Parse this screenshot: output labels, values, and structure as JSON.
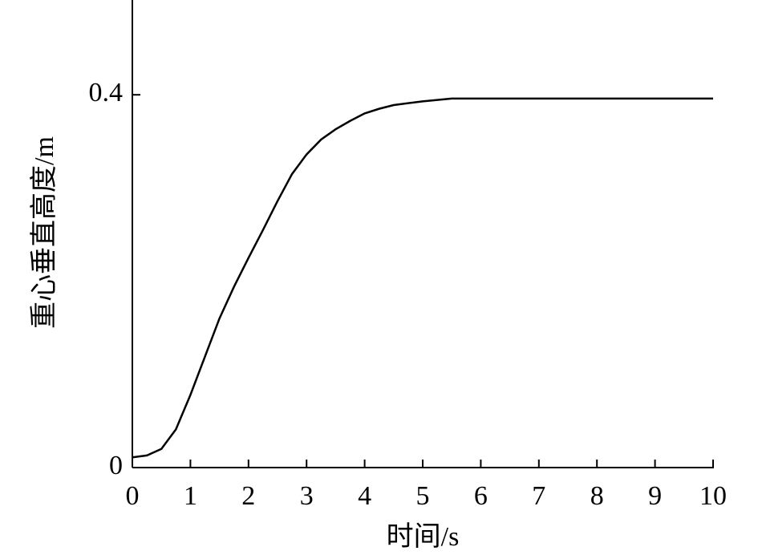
{
  "chart_data": {
    "type": "line",
    "x_label": "时间/s",
    "y_label": "重心垂直高度/m",
    "x": [
      0,
      0.25,
      0.5,
      0.75,
      1,
      1.25,
      1.5,
      1.75,
      2,
      2.25,
      2.5,
      2.75,
      3,
      3.25,
      3.5,
      3.75,
      4,
      4.25,
      4.5,
      5,
      5.5,
      6,
      7,
      8,
      9,
      10
    ],
    "series": [
      {
        "color": "#000000",
        "values": [
          0.011,
          0.013,
          0.02,
          0.041,
          0.078,
          0.119,
          0.16,
          0.194,
          0.225,
          0.255,
          0.286,
          0.315,
          0.336,
          0.352,
          0.363,
          0.372,
          0.38,
          0.385,
          0.389,
          0.393,
          0.396,
          0.396,
          0.396,
          0.396,
          0.396,
          0.396
        ]
      }
    ],
    "xlim": [
      0,
      10
    ],
    "xticks": [
      0,
      1,
      2,
      3,
      4,
      5,
      6,
      7,
      8,
      9,
      10
    ],
    "ylim": [
      0,
      0.5
    ],
    "yticks": [
      0,
      0.4
    ],
    "grid": false
  }
}
